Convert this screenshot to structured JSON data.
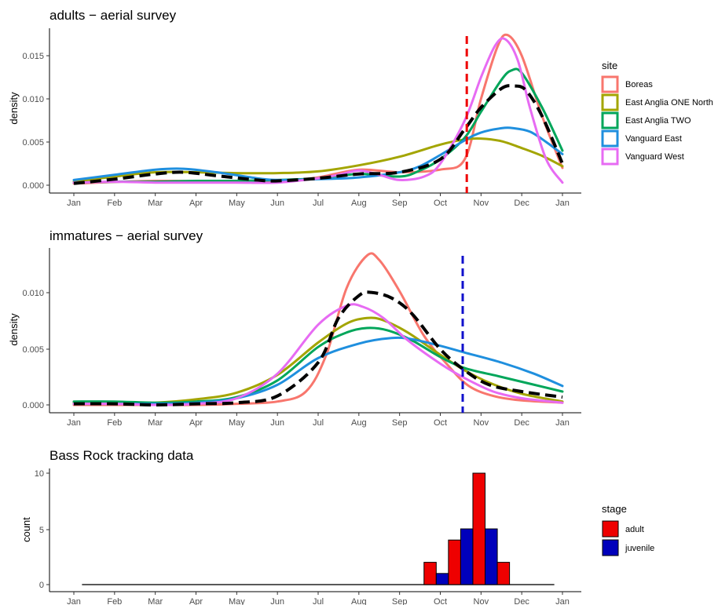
{
  "chart_data": [
    {
      "type": "line",
      "title": "adults − aerial survey",
      "xlabel": "",
      "ylabel": "density",
      "xlim": [
        0,
        12
      ],
      "ylim": [
        0,
        0.0175
      ],
      "xticks": [
        "Jan",
        "Feb",
        "Mar",
        "Apr",
        "May",
        "Jun",
        "Jul",
        "Aug",
        "Sep",
        "Oct",
        "Nov",
        "Dec",
        "Jan"
      ],
      "yticks": [
        "0.000",
        "0.005",
        "0.010",
        "0.015"
      ],
      "legend_position": "right",
      "legend_title": "site",
      "vline": {
        "x": 9.65,
        "color": "#ee0000",
        "style": "dashed"
      },
      "overall_line": {
        "color": "#000000",
        "style": "dashed",
        "points": [
          [
            0,
            0.0002
          ],
          [
            1,
            0.0007
          ],
          [
            2,
            0.0013
          ],
          [
            2.7,
            0.0015
          ],
          [
            3.5,
            0.0011
          ],
          [
            4.5,
            0.0006
          ],
          [
            5,
            0.0005
          ],
          [
            6,
            0.0008
          ],
          [
            7,
            0.0013
          ],
          [
            8,
            0.0015
          ],
          [
            9,
            0.003
          ],
          [
            9.6,
            0.0065
          ],
          [
            10,
            0.009
          ],
          [
            10.5,
            0.0112
          ],
          [
            10.8,
            0.0115
          ],
          [
            11.1,
            0.011
          ],
          [
            11.5,
            0.008
          ],
          [
            12,
            0.0025
          ]
        ]
      },
      "series": [
        {
          "name": "Boreas",
          "color": "#f8766d",
          "points": [
            [
              0,
              0.0002
            ],
            [
              2,
              0.0005
            ],
            [
              4,
              0.0004
            ],
            [
              5,
              0.0004
            ],
            [
              6,
              0.0009
            ],
            [
              7,
              0.0018
            ],
            [
              8,
              0.0015
            ],
            [
              9,
              0.0018
            ],
            [
              9.6,
              0.003
            ],
            [
              10,
              0.01
            ],
            [
              10.4,
              0.016
            ],
            [
              10.65,
              0.0174
            ],
            [
              11,
              0.015
            ],
            [
              11.5,
              0.008
            ],
            [
              12,
              0.002
            ]
          ]
        },
        {
          "name": "East Anglia ONE North",
          "color": "#a3a500",
          "points": [
            [
              0,
              0.0004
            ],
            [
              1,
              0.001
            ],
            [
              2,
              0.0015
            ],
            [
              3,
              0.0015
            ],
            [
              4,
              0.0014
            ],
            [
              5,
              0.0014
            ],
            [
              6,
              0.0016
            ],
            [
              7,
              0.0023
            ],
            [
              8,
              0.0033
            ],
            [
              9,
              0.0047
            ],
            [
              9.6,
              0.0053
            ],
            [
              10,
              0.0054
            ],
            [
              10.5,
              0.0051
            ],
            [
              11,
              0.0043
            ],
            [
              11.5,
              0.0034
            ],
            [
              12,
              0.0022
            ]
          ]
        },
        {
          "name": "East Anglia TWO",
          "color": "#00a65a",
          "points": [
            [
              0,
              0.0003
            ],
            [
              1,
              0.0004
            ],
            [
              2,
              0.0004
            ],
            [
              3,
              0.0005
            ],
            [
              4,
              0.0005
            ],
            [
              5,
              0.0006
            ],
            [
              6,
              0.0008
            ],
            [
              7,
              0.0013
            ],
            [
              8,
              0.001
            ],
            [
              8.5,
              0.0017
            ],
            [
              9,
              0.003
            ],
            [
              9.6,
              0.0055
            ],
            [
              10,
              0.0085
            ],
            [
              10.5,
              0.0122
            ],
            [
              10.75,
              0.0133
            ],
            [
              11,
              0.013
            ],
            [
              11.5,
              0.009
            ],
            [
              12,
              0.004
            ]
          ]
        },
        {
          "name": "Vanguard East",
          "color": "#1f8fde",
          "points": [
            [
              0,
              0.0006
            ],
            [
              1,
              0.0012
            ],
            [
              2,
              0.0018
            ],
            [
              2.7,
              0.0019
            ],
            [
              3.5,
              0.0015
            ],
            [
              4.5,
              0.0008
            ],
            [
              5,
              0.0006
            ],
            [
              6,
              0.0007
            ],
            [
              7,
              0.0009
            ],
            [
              8,
              0.0015
            ],
            [
              8.5,
              0.0022
            ],
            [
              9,
              0.0035
            ],
            [
              9.6,
              0.0052
            ],
            [
              10,
              0.0061
            ],
            [
              10.5,
              0.0066
            ],
            [
              10.8,
              0.0066
            ],
            [
              11.2,
              0.0062
            ],
            [
              11.6,
              0.005
            ],
            [
              12,
              0.0036
            ]
          ]
        },
        {
          "name": "Vanguard West",
          "color": "#e76bf3",
          "points": [
            [
              0,
              0.0003
            ],
            [
              1,
              0.0004
            ],
            [
              2,
              0.0003
            ],
            [
              3,
              0.0003
            ],
            [
              4,
              0.0003
            ],
            [
              5,
              0.0003
            ],
            [
              6,
              0.0008
            ],
            [
              6.5,
              0.0012
            ],
            [
              7,
              0.0017
            ],
            [
              7.5,
              0.0012
            ],
            [
              8,
              0.0006
            ],
            [
              8.6,
              0.001
            ],
            [
              9,
              0.0025
            ],
            [
              9.6,
              0.0075
            ],
            [
              10,
              0.0125
            ],
            [
              10.35,
              0.0162
            ],
            [
              10.6,
              0.0169
            ],
            [
              10.9,
              0.0145
            ],
            [
              11.2,
              0.009
            ],
            [
              11.6,
              0.003
            ],
            [
              12,
              0.0003
            ]
          ]
        }
      ]
    },
    {
      "type": "line",
      "title": "immatures − aerial survey",
      "xlabel": "",
      "ylabel": "density",
      "xlim": [
        0,
        12
      ],
      "ylim": [
        0,
        0.0135
      ],
      "xticks": [
        "Jan",
        "Feb",
        "Mar",
        "Apr",
        "May",
        "Jun",
        "Jul",
        "Aug",
        "Sep",
        "Oct",
        "Nov",
        "Dec",
        "Jan"
      ],
      "yticks": [
        "0.000",
        "0.005",
        "0.010"
      ],
      "vline": {
        "x": 9.55,
        "color": "#1010cc",
        "style": "dashed"
      },
      "overall_line": {
        "color": "#000000",
        "style": "dashed",
        "points": [
          [
            0,
            0.0001
          ],
          [
            1,
            0.0001
          ],
          [
            2,
            0.0
          ],
          [
            3,
            0.0001
          ],
          [
            4,
            0.0002
          ],
          [
            5,
            0.0008
          ],
          [
            6,
            0.0038
          ],
          [
            6.5,
            0.0078
          ],
          [
            7,
            0.0098
          ],
          [
            7.3,
            0.0101
          ],
          [
            7.8,
            0.0096
          ],
          [
            8.3,
            0.0082
          ],
          [
            9,
            0.005
          ],
          [
            9.6,
            0.0031
          ],
          [
            10.2,
            0.0018
          ],
          [
            11,
            0.0012
          ],
          [
            12,
            0.0007
          ]
        ]
      },
      "series": [
        {
          "name": "Boreas",
          "color": "#f8766d",
          "points": [
            [
              0,
              0.0
            ],
            [
              1,
              0.0
            ],
            [
              2,
              0.0
            ],
            [
              3,
              0.0
            ],
            [
              4,
              0.0001
            ],
            [
              5,
              0.0003
            ],
            [
              5.7,
              0.0012
            ],
            [
              6.2,
              0.0045
            ],
            [
              6.7,
              0.0105
            ],
            [
              7.2,
              0.0134
            ],
            [
              7.5,
              0.013
            ],
            [
              8,
              0.0102
            ],
            [
              8.6,
              0.0062
            ],
            [
              9.2,
              0.0035
            ],
            [
              9.7,
              0.0017
            ],
            [
              10.3,
              0.0008
            ],
            [
              11,
              0.0004
            ],
            [
              12,
              0.0002
            ]
          ]
        },
        {
          "name": "East Anglia ONE North",
          "color": "#a3a500",
          "points": [
            [
              0,
              0.0002
            ],
            [
              1,
              0.0002
            ],
            [
              2,
              0.0002
            ],
            [
              3,
              0.0005
            ],
            [
              4,
              0.0011
            ],
            [
              5,
              0.0027
            ],
            [
              6,
              0.0056
            ],
            [
              6.7,
              0.0073
            ],
            [
              7.2,
              0.0078
            ],
            [
              7.6,
              0.0076
            ],
            [
              8.2,
              0.0065
            ],
            [
              9,
              0.0045
            ],
            [
              9.6,
              0.0031
            ],
            [
              10.2,
              0.002
            ],
            [
              11,
              0.001
            ],
            [
              12,
              0.0003
            ]
          ]
        },
        {
          "name": "East Anglia TWO",
          "color": "#00a65a",
          "points": [
            [
              0,
              0.0003
            ],
            [
              1,
              0.0003
            ],
            [
              2,
              0.0002
            ],
            [
              3,
              0.0003
            ],
            [
              4,
              0.0007
            ],
            [
              5,
              0.0022
            ],
            [
              6,
              0.0052
            ],
            [
              6.7,
              0.0065
            ],
            [
              7.2,
              0.0069
            ],
            [
              7.7,
              0.0067
            ],
            [
              8.3,
              0.0058
            ],
            [
              9,
              0.0043
            ],
            [
              9.6,
              0.0033
            ],
            [
              10.4,
              0.0026
            ],
            [
              11.2,
              0.0019
            ],
            [
              12,
              0.0012
            ]
          ]
        },
        {
          "name": "Vanguard East",
          "color": "#1f8fde",
          "points": [
            [
              0,
              0.0001
            ],
            [
              1,
              0.0001
            ],
            [
              2,
              0.0001
            ],
            [
              3,
              0.0002
            ],
            [
              4,
              0.0006
            ],
            [
              5,
              0.0018
            ],
            [
              6,
              0.0042
            ],
            [
              7,
              0.0055
            ],
            [
              7.8,
              0.006
            ],
            [
              8.3,
              0.0059
            ],
            [
              9,
              0.0053
            ],
            [
              9.6,
              0.0047
            ],
            [
              10.5,
              0.0038
            ],
            [
              11.3,
              0.0028
            ],
            [
              12,
              0.0017
            ]
          ]
        },
        {
          "name": "Vanguard West",
          "color": "#e76bf3",
          "points": [
            [
              0,
              0.0001
            ],
            [
              1,
              0.0001
            ],
            [
              2,
              0.0
            ],
            [
              3,
              0.0001
            ],
            [
              4,
              0.0006
            ],
            [
              5,
              0.0028
            ],
            [
              6,
              0.0072
            ],
            [
              6.7,
              0.0089
            ],
            [
              7.1,
              0.0088
            ],
            [
              7.6,
              0.0078
            ],
            [
              8.2,
              0.0058
            ],
            [
              9,
              0.0037
            ],
            [
              9.6,
              0.0024
            ],
            [
              10.3,
              0.0012
            ],
            [
              11,
              0.0006
            ],
            [
              12,
              0.0002
            ]
          ]
        }
      ]
    },
    {
      "type": "bar",
      "title": "Bass Rock tracking data",
      "xlabel": "",
      "ylabel": "count",
      "xlim": [
        0,
        12
      ],
      "ylim": [
        0,
        10.4
      ],
      "xticks": [
        "Jan",
        "Feb",
        "Mar",
        "Apr",
        "May",
        "Jun",
        "Jul",
        "Aug",
        "Sep",
        "Oct",
        "Nov",
        "Dec",
        "Jan"
      ],
      "yticks": [
        "0",
        "5",
        "10"
      ],
      "legend_position": "right",
      "legend_title": "stage",
      "bin_width": 0.3,
      "bars": [
        {
          "x_start": 8.6,
          "stage": "adult",
          "count": 2
        },
        {
          "x_start": 8.9,
          "stage": "juvenile",
          "count": 1
        },
        {
          "x_start": 9.2,
          "stage": "adult",
          "count": 4
        },
        {
          "x_start": 9.5,
          "stage": "juvenile",
          "count": 5
        },
        {
          "x_start": 9.8,
          "stage": "adult",
          "count": 10
        },
        {
          "x_start": 10.1,
          "stage": "juvenile",
          "count": 5
        },
        {
          "x_start": 10.4,
          "stage": "adult",
          "count": 2
        }
      ],
      "baseline": [
        0.2,
        11.8
      ],
      "stages": [
        {
          "name": "adult",
          "color": "#ee0000"
        },
        {
          "name": "juvenile",
          "color": "#0000bb"
        }
      ]
    }
  ]
}
